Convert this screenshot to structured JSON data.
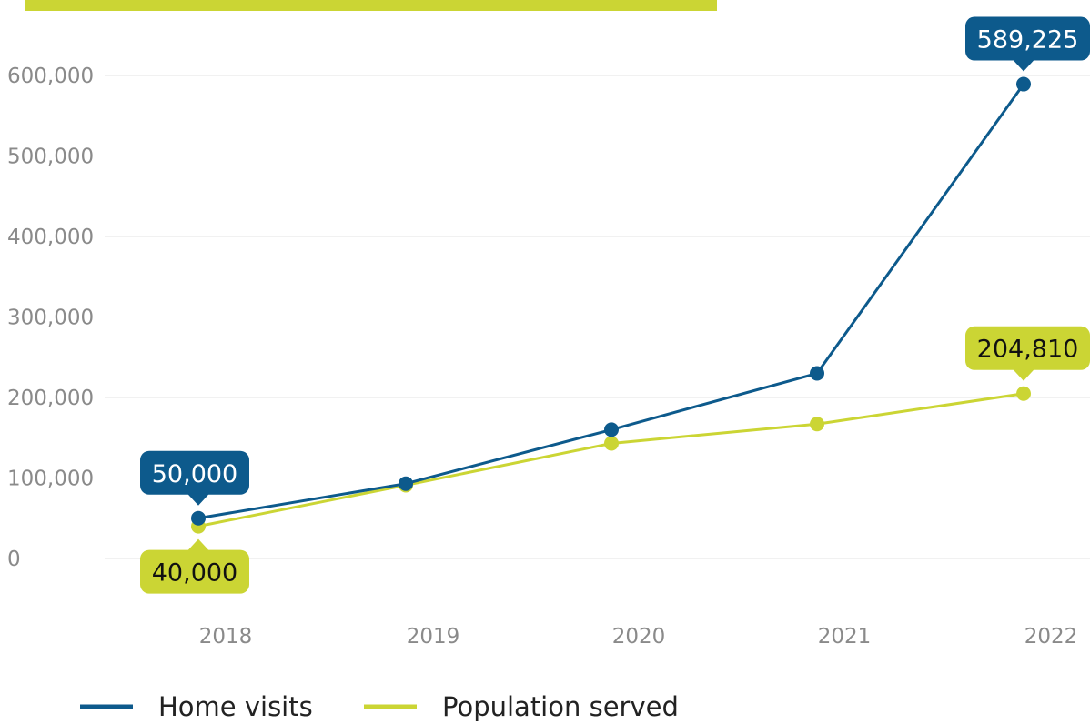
{
  "chart_data": {
    "type": "line",
    "title": "",
    "xlabel": "",
    "ylabel": "",
    "x": [
      "2018",
      "2019",
      "2020",
      "2021",
      "2022"
    ],
    "ylim": [
      0,
      600000
    ],
    "yticks": [
      "0",
      "100,000",
      "200,000",
      "300,000",
      "400,000",
      "500,000",
      "600,000"
    ],
    "grid": true,
    "legend_position": "bottom-left",
    "series": [
      {
        "name": "Home visits",
        "color": "#0d5a8c",
        "values": [
          50000,
          93000,
          160000,
          230000,
          589225
        ]
      },
      {
        "name": "Population served",
        "color": "#cbd534",
        "values": [
          40000,
          91000,
          143000,
          167000,
          204810
        ]
      }
    ],
    "annotations": [
      {
        "text": "50,000",
        "series": 0,
        "index": 0,
        "color": "#0d5a8c",
        "text_color": "#ffffff"
      },
      {
        "text": "589,225",
        "series": 0,
        "index": 4,
        "color": "#0d5a8c",
        "text_color": "#ffffff"
      },
      {
        "text": "40,000",
        "series": 1,
        "index": 0,
        "color": "#cbd534",
        "text_color": "#111111"
      },
      {
        "text": "204,810",
        "series": 1,
        "index": 4,
        "color": "#cbd534",
        "text_color": "#111111"
      }
    ],
    "decoration": {
      "top_bar_color": "#cbd534"
    }
  }
}
